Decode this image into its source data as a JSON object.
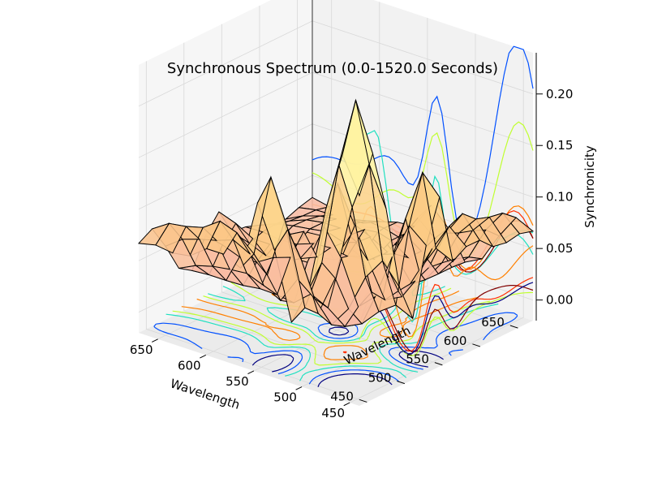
{
  "chart_data": {
    "type": "surface3d",
    "title": "Synchronous Spectrum (0.0-1520.0 Seconds)",
    "xlabel": "Wavelength",
    "ylabel": "Wavelength",
    "zlabel": "Synchronicity",
    "xlim": [
      440,
      670
    ],
    "ylim": [
      440,
      670
    ],
    "zlim": [
      -0.02,
      0.24
    ],
    "x_ticks": [
      450,
      500,
      550,
      600,
      650
    ],
    "y_ticks": [
      450,
      500,
      550,
      600,
      650
    ],
    "z_ticks": [
      0.0,
      0.05,
      0.1,
      0.15,
      0.2
    ],
    "z_tick_labels": [
      "0.00",
      "0.05",
      "0.10",
      "0.15",
      "0.20"
    ],
    "grid": true,
    "colormap": "hot-to-yellow surface with jet-colored contour projections",
    "wavelengths": [
      440,
      455,
      470,
      485,
      500,
      515,
      530,
      545,
      560,
      575,
      590,
      605,
      620,
      635,
      650,
      665
    ],
    "surface_color_low": "#f7b8b0",
    "surface_color_high": "#fff2a0",
    "contour_colors": [
      "#000080",
      "#0050ff",
      "#20e0c0",
      "#c0ff30",
      "#ff8000",
      "#ff3000",
      "#800000"
    ]
  }
}
